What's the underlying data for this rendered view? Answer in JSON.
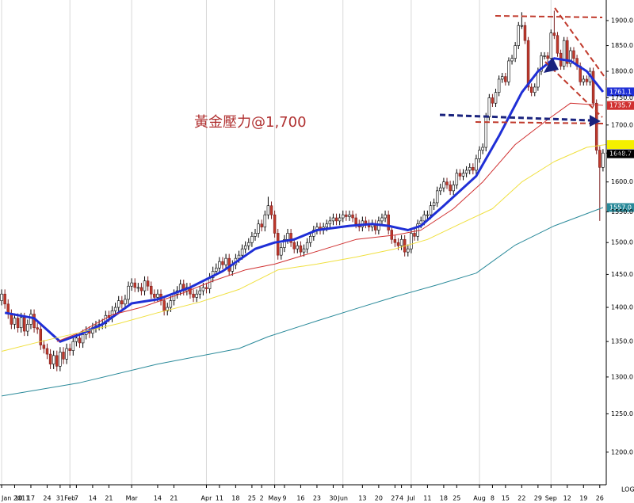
{
  "chart_data": {
    "type": "candlestick",
    "annotation": "黃金壓力@1,700",
    "log_label": "LOG",
    "log_scale": true,
    "grid": true,
    "up_color": "#ffffff",
    "down_color": "#c0392b",
    "xlim": [
      -0.5,
      186
    ],
    "ylim": [
      1161,
      1942
    ],
    "yticks": [
      {
        "value": 1200,
        "label": "1200.0"
      },
      {
        "value": 1250,
        "label": "1250.0"
      },
      {
        "value": 1300,
        "label": "1300.0"
      },
      {
        "value": 1350,
        "label": "1350.0"
      },
      {
        "value": 1400,
        "label": "1400.0"
      },
      {
        "value": 1450,
        "label": "1450.0"
      },
      {
        "value": 1500,
        "label": "1500.0"
      },
      {
        "value": 1550,
        "label": "1550.0"
      },
      {
        "value": 1600,
        "label": "1600.0"
      },
      {
        "value": 1650,
        "label": "1650.0"
      },
      {
        "value": 1700,
        "label": "1700.0"
      },
      {
        "value": 1750,
        "label": "1750.0"
      },
      {
        "value": 1800,
        "label": "1800.0"
      },
      {
        "value": 1850,
        "label": "1850.0"
      },
      {
        "value": 1900,
        "label": "1900.0"
      }
    ],
    "xticks": [
      {
        "value": 0,
        "label": "Jan 2011"
      },
      {
        "value": 4,
        "label": "10"
      },
      {
        "value": 9,
        "label": "17"
      },
      {
        "value": 14,
        "label": "24"
      },
      {
        "value": 18,
        "label": "31"
      },
      {
        "value": 21,
        "label": "Feb"
      },
      {
        "value": 23,
        "label": "7"
      },
      {
        "value": 28,
        "label": "14"
      },
      {
        "value": 33,
        "label": "21"
      },
      {
        "value": 40,
        "label": "Mar"
      },
      {
        "value": 48,
        "label": "14"
      },
      {
        "value": 53,
        "label": "21"
      },
      {
        "value": 63,
        "label": "Apr"
      },
      {
        "value": 67,
        "label": "11"
      },
      {
        "value": 72,
        "label": "18"
      },
      {
        "value": 77,
        "label": "25"
      },
      {
        "value": 80,
        "label": "2"
      },
      {
        "value": 84,
        "label": "May"
      },
      {
        "value": 87,
        "label": "9"
      },
      {
        "value": 92,
        "label": "16"
      },
      {
        "value": 97,
        "label": "23"
      },
      {
        "value": 102,
        "label": "30"
      },
      {
        "value": 105,
        "label": "Jun"
      },
      {
        "value": 111,
        "label": "13"
      },
      {
        "value": 116,
        "label": "20"
      },
      {
        "value": 121,
        "label": "27"
      },
      {
        "value": 123,
        "label": "4"
      },
      {
        "value": 126,
        "label": "Jul"
      },
      {
        "value": 131,
        "label": "11"
      },
      {
        "value": 136,
        "label": "18"
      },
      {
        "value": 140,
        "label": "25"
      },
      {
        "value": 147,
        "label": "Aug"
      },
      {
        "value": 151,
        "label": "8"
      },
      {
        "value": 155,
        "label": "15"
      },
      {
        "value": 160,
        "label": "22"
      },
      {
        "value": 165,
        "label": "29"
      },
      {
        "value": 169,
        "label": "Sep"
      },
      {
        "value": 174,
        "label": "12"
      },
      {
        "value": 179,
        "label": "19"
      },
      {
        "value": 184,
        "label": "26"
      }
    ],
    "candles": {
      "open": [
        1410,
        1420,
        1405,
        1390,
        1375,
        1384,
        1370,
        1385,
        1365,
        1375,
        1390,
        1370,
        1368,
        1345,
        1340,
        1332,
        1318,
        1330,
        1315,
        1335,
        1325,
        1340,
        1337,
        1350,
        1355,
        1348,
        1360,
        1365,
        1362,
        1370,
        1373,
        1375,
        1376,
        1388,
        1385,
        1395,
        1400,
        1410,
        1405,
        1412,
        1432,
        1437,
        1430,
        1430,
        1425,
        1440,
        1432,
        1420,
        1415,
        1420,
        1410,
        1395,
        1400,
        1410,
        1420,
        1425,
        1435,
        1425,
        1430,
        1420,
        1415,
        1420,
        1425,
        1430,
        1428,
        1445,
        1455,
        1460,
        1470,
        1465,
        1475,
        1455,
        1465,
        1475,
        1480,
        1490,
        1495,
        1500,
        1510,
        1515,
        1530,
        1525,
        1545,
        1560,
        1545,
        1515,
        1480,
        1492,
        1505,
        1515,
        1500,
        1490,
        1495,
        1485,
        1490,
        1500,
        1510,
        1520,
        1525,
        1520,
        1525,
        1530,
        1535,
        1540,
        1535,
        1540,
        1545,
        1542,
        1545,
        1540,
        1530,
        1525,
        1535,
        1530,
        1525,
        1530,
        1520,
        1535,
        1540,
        1545,
        1520,
        1505,
        1500,
        1495,
        1505,
        1485,
        1490,
        1515,
        1510,
        1530,
        1535,
        1545,
        1545,
        1560,
        1565,
        1585,
        1590,
        1600,
        1595,
        1585,
        1595,
        1615,
        1610,
        1615,
        1620,
        1625,
        1620,
        1640,
        1655,
        1660,
        1715,
        1750,
        1740,
        1760,
        1785,
        1790,
        1780,
        1820,
        1825,
        1850,
        1890,
        1890,
        1860,
        1770,
        1760,
        1770,
        1800,
        1830,
        1830,
        1825,
        1875,
        1870,
        1835,
        1810,
        1860,
        1815,
        1840,
        1825,
        1810,
        1780,
        1785,
        1780,
        1800,
        1740,
        1655,
        1625
      ],
      "high": [
        1427,
        1427,
        1412,
        1397,
        1391,
        1391,
        1392,
        1392,
        1382,
        1397,
        1397,
        1377,
        1375,
        1352,
        1347,
        1339,
        1337,
        1337,
        1342,
        1342,
        1347,
        1347,
        1357,
        1362,
        1362,
        1367,
        1372,
        1372,
        1377,
        1380,
        1382,
        1383,
        1395,
        1395,
        1402,
        1407,
        1417,
        1417,
        1419,
        1439,
        1444,
        1444,
        1437,
        1437,
        1447,
        1447,
        1439,
        1427,
        1427,
        1427,
        1417,
        1407,
        1417,
        1427,
        1432,
        1442,
        1442,
        1437,
        1437,
        1427,
        1427,
        1432,
        1437,
        1437,
        1452,
        1462,
        1467,
        1477,
        1477,
        1482,
        1482,
        1472,
        1482,
        1487,
        1497,
        1502,
        1507,
        1517,
        1522,
        1537,
        1537,
        1552,
        1575,
        1567,
        1552,
        1522,
        1499,
        1512,
        1522,
        1522,
        1507,
        1502,
        1502,
        1497,
        1507,
        1517,
        1527,
        1532,
        1532,
        1532,
        1537,
        1542,
        1547,
        1547,
        1547,
        1552,
        1552,
        1552,
        1552,
        1547,
        1537,
        1542,
        1542,
        1537,
        1537,
        1537,
        1542,
        1547,
        1552,
        1552,
        1527,
        1512,
        1507,
        1512,
        1512,
        1497,
        1522,
        1522,
        1537,
        1542,
        1552,
        1552,
        1567,
        1572,
        1592,
        1597,
        1607,
        1607,
        1602,
        1602,
        1622,
        1622,
        1622,
        1627,
        1632,
        1632,
        1647,
        1662,
        1667,
        1722,
        1757,
        1757,
        1767,
        1792,
        1797,
        1797,
        1827,
        1832,
        1857,
        1897,
        1917,
        1897,
        1867,
        1777,
        1777,
        1807,
        1837,
        1837,
        1837,
        1882,
        1920,
        1877,
        1842,
        1867,
        1867,
        1847,
        1847,
        1832,
        1817,
        1792,
        1792,
        1807,
        1807,
        1747,
        1662,
        1657
      ],
      "low": [
        1403,
        1398,
        1383,
        1368,
        1368,
        1363,
        1363,
        1358,
        1358,
        1368,
        1363,
        1361,
        1338,
        1333,
        1325,
        1311,
        1311,
        1308,
        1308,
        1318,
        1318,
        1330,
        1330,
        1343,
        1341,
        1341,
        1353,
        1355,
        1355,
        1363,
        1366,
        1368,
        1369,
        1378,
        1378,
        1388,
        1393,
        1398,
        1398,
        1405,
        1425,
        1423,
        1423,
        1418,
        1418,
        1425,
        1413,
        1408,
        1408,
        1403,
        1388,
        1388,
        1393,
        1403,
        1413,
        1418,
        1418,
        1418,
        1413,
        1408,
        1408,
        1413,
        1418,
        1421,
        1421,
        1438,
        1448,
        1453,
        1458,
        1458,
        1448,
        1448,
        1458,
        1468,
        1473,
        1483,
        1488,
        1493,
        1503,
        1508,
        1518,
        1518,
        1538,
        1538,
        1508,
        1473,
        1473,
        1485,
        1498,
        1493,
        1483,
        1483,
        1478,
        1478,
        1483,
        1493,
        1503,
        1513,
        1513,
        1513,
        1518,
        1523,
        1528,
        1528,
        1528,
        1533,
        1535,
        1535,
        1533,
        1523,
        1518,
        1518,
        1523,
        1518,
        1518,
        1513,
        1513,
        1528,
        1533,
        1513,
        1498,
        1493,
        1488,
        1488,
        1478,
        1478,
        1483,
        1503,
        1503,
        1523,
        1528,
        1538,
        1538,
        1553,
        1558,
        1578,
        1583,
        1588,
        1578,
        1578,
        1588,
        1603,
        1603,
        1608,
        1613,
        1613,
        1613,
        1633,
        1648,
        1653,
        1708,
        1733,
        1733,
        1753,
        1778,
        1773,
        1773,
        1813,
        1818,
        1843,
        1883,
        1853,
        1763,
        1753,
        1753,
        1763,
        1793,
        1823,
        1818,
        1818,
        1863,
        1828,
        1803,
        1803,
        1808,
        1808,
        1818,
        1803,
        1773,
        1773,
        1773,
        1773,
        1733,
        1648,
        1535,
        1618
      ],
      "close": [
        1420,
        1405,
        1390,
        1375,
        1384,
        1370,
        1385,
        1365,
        1375,
        1390,
        1370,
        1368,
        1345,
        1340,
        1332,
        1318,
        1330,
        1315,
        1335,
        1325,
        1340,
        1337,
        1350,
        1355,
        1348,
        1360,
        1365,
        1362,
        1370,
        1373,
        1375,
        1376,
        1388,
        1385,
        1395,
        1400,
        1410,
        1405,
        1412,
        1432,
        1437,
        1430,
        1430,
        1425,
        1440,
        1432,
        1420,
        1415,
        1420,
        1410,
        1395,
        1400,
        1410,
        1420,
        1425,
        1435,
        1425,
        1430,
        1420,
        1415,
        1420,
        1425,
        1430,
        1428,
        1445,
        1455,
        1460,
        1470,
        1465,
        1475,
        1455,
        1465,
        1475,
        1480,
        1490,
        1495,
        1500,
        1510,
        1515,
        1530,
        1525,
        1545,
        1560,
        1545,
        1515,
        1480,
        1492,
        1505,
        1515,
        1500,
        1490,
        1495,
        1485,
        1490,
        1500,
        1510,
        1520,
        1525,
        1520,
        1525,
        1530,
        1535,
        1540,
        1535,
        1540,
        1545,
        1542,
        1545,
        1540,
        1530,
        1525,
        1535,
        1530,
        1525,
        1530,
        1520,
        1535,
        1540,
        1545,
        1520,
        1505,
        1500,
        1495,
        1505,
        1485,
        1490,
        1515,
        1510,
        1530,
        1535,
        1545,
        1545,
        1560,
        1565,
        1585,
        1590,
        1600,
        1595,
        1585,
        1595,
        1615,
        1610,
        1615,
        1620,
        1625,
        1620,
        1640,
        1655,
        1660,
        1715,
        1750,
        1740,
        1760,
        1785,
        1790,
        1780,
        1820,
        1825,
        1850,
        1890,
        1890,
        1860,
        1770,
        1760,
        1770,
        1800,
        1830,
        1830,
        1825,
        1875,
        1870,
        1835,
        1810,
        1860,
        1815,
        1840,
        1825,
        1810,
        1780,
        1785,
        1780,
        1800,
        1740,
        1655,
        1625,
        1650
      ]
    },
    "series": [
      {
        "color": "#1f2fd6",
        "line_width": 3,
        "x": [
          1,
          10,
          18,
          24,
          31,
          40,
          48,
          58,
          68,
          78,
          84,
          90,
          97,
          107,
          114,
          119,
          125,
          129,
          136,
          146,
          153,
          160,
          165,
          170,
          175,
          180,
          185
        ],
        "values": [
          1392,
          1384,
          1350,
          1360,
          1375,
          1406,
          1412,
          1430,
          1455,
          1490,
          1500,
          1505,
          1520,
          1527,
          1530,
          1527,
          1520,
          1527,
          1560,
          1610,
          1680,
          1760,
          1800,
          1825,
          1820,
          1800,
          1761
        ]
      },
      {
        "color": "#d03030",
        "line_width": 1,
        "x": [
          17,
          24,
          34,
          43,
          56,
          65,
          75,
          84,
          97,
          109,
          121,
          129,
          139,
          148,
          158,
          168,
          175,
          185
        ],
        "values": [
          1350,
          1363,
          1389,
          1400,
          1422,
          1440,
          1457,
          1466,
          1486,
          1505,
          1512,
          1520,
          1555,
          1600,
          1665,
          1710,
          1740,
          1736
        ]
      },
      {
        "color": "#f0e040",
        "line_width": 1,
        "x": [
          0,
          12,
          24,
          36,
          48,
          61,
          73,
          85,
          97,
          109,
          121,
          131,
          141,
          151,
          160,
          170,
          180,
          186
        ],
        "values": [
          1336,
          1350,
          1363,
          1376,
          1392,
          1408,
          1427,
          1457,
          1466,
          1477,
          1490,
          1505,
          1530,
          1555,
          1600,
          1635,
          1660,
          1665
        ]
      },
      {
        "color": "#2a8a9a",
        "line_width": 1,
        "x": [
          0,
          24,
          48,
          73,
          82,
          97,
          109,
          121,
          134,
          146,
          158,
          170,
          185
        ],
        "values": [
          1274,
          1292,
          1318,
          1340,
          1357,
          1380,
          1398,
          1416,
          1434,
          1452,
          1496,
          1527,
          1557
        ]
      }
    ],
    "price_tags": [
      {
        "value": 1761.1,
        "label": "1761.1",
        "color": "#1f2fd6"
      },
      {
        "value": 1735.7,
        "label": "1735.7",
        "color": "#d03030"
      },
      {
        "value": 1665,
        "color": "#f5f000"
      },
      {
        "value": 1648.7,
        "label": "1648.7",
        "color": "#000000"
      },
      {
        "value": 1557,
        "label": "1557.0",
        "color": "#2a8a9a"
      }
    ]
  }
}
